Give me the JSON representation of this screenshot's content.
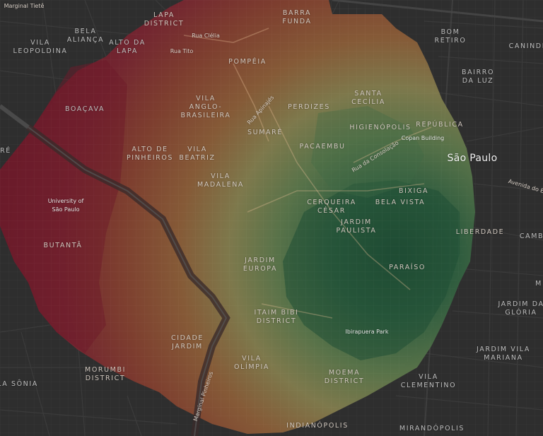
{
  "map": {
    "city": "São Paulo",
    "neighborhoods": [
      "LAPA\nDISTRICT",
      "BARRA\nFUNDA",
      "BELA\nALIANÇA",
      "ALTO DA\nLAPA",
      "VILA\nLEOPOLDINA",
      "BOM\nRETIRO",
      "CANINDÉ",
      "POMPÉIA",
      "BAIRRO\nDA LUZ",
      "VILA\nANGLO-\nBRASILEIRA",
      "SANTA\nCECÍLIA",
      "BOAÇAVA",
      "PERDIZES",
      "HIGIENÓPOLIS",
      "REPÚBLICA",
      "SUMARÉ",
      "PACAEMBU",
      "ALTO DE\nPINHEIROS",
      "VILA\nBEATRIZ",
      "VILA\nMADALENA",
      "BIXIGA",
      "CERQUEIRA\nCÉSAR",
      "BELA VISTA",
      "JARDIM\nPAULISTA",
      "LIBERDADE",
      "BUTANTÃ",
      "JARDIM\nEUROPA",
      "PARAÍSO",
      "ITAIM BIBI\nDISTRICT",
      "JARDIM DA\nGLÓRIA",
      "CIDADE\nJARDIM",
      "JARDIM VILA\nMARIANA",
      "MORUMBI\nDISTRICT",
      "VILA\nOLÍMPIA",
      "MOEMA\nDISTRICT",
      "VILA\nCLEMENTINO",
      "INDIANÓPOLIS",
      "MIRANDÓPOLIS",
      "RÉ",
      "LA SÔNIA",
      "CAMB",
      "M"
    ],
    "roads": [
      "Marginal Tietê",
      "Rua Clélia",
      "Rua Tito",
      "Rua Apinajés",
      "Rua da Consolação",
      "Avenida do E",
      "Marginal Pinheiros"
    ],
    "pois": [
      "University of\nSão Paulo",
      "Copan Building",
      "Ibirapuera Park"
    ],
    "colors": {
      "background": "#2e2e2e",
      "red": "#7a1d2c",
      "orange": "#8e4a2c",
      "tan": "#8c6b3f",
      "light_green": "#6f7c4b",
      "green": "#3f6b45",
      "dark_green": "#1f4f34"
    }
  }
}
